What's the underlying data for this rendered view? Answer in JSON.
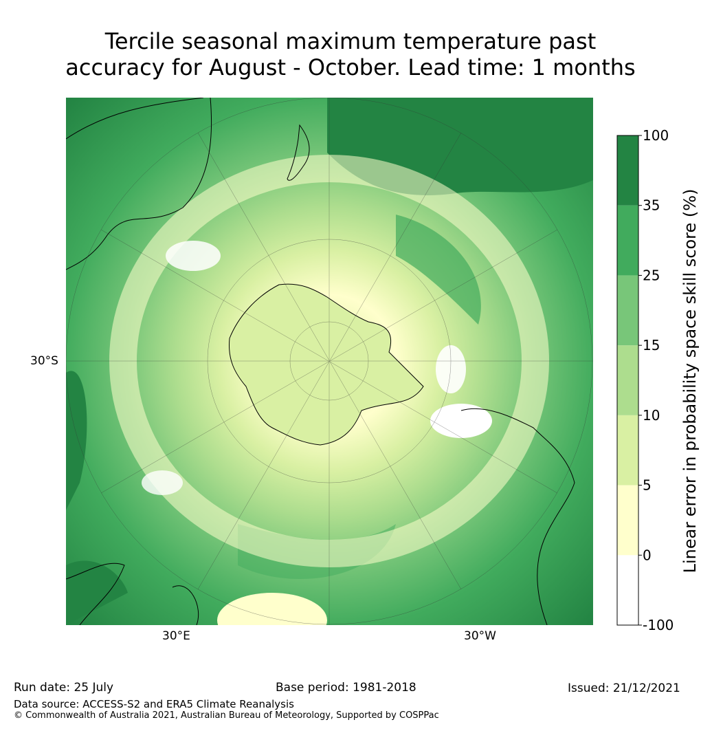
{
  "title": {
    "line1": "Tercile seasonal maximum temperature past",
    "line2": "accuracy for August - October. Lead time: 1 months"
  },
  "map": {
    "lat_label": "30°S",
    "lon_labels": [
      "30°E",
      "30°W"
    ],
    "palette": [
      "#ffffff",
      "#ffffcc",
      "#d9f0a3",
      "#addd8e",
      "#78c679",
      "#41ab5d",
      "#238443"
    ]
  },
  "colorbar": {
    "label": "Linear error in probability space skill score (%)",
    "ticks": [
      "-100",
      "0",
      "5",
      "10",
      "15",
      "25",
      "35",
      "100"
    ],
    "colors": [
      "#ffffff",
      "#ffffcc",
      "#d9f0a3",
      "#addd8e",
      "#78c679",
      "#41ab5d",
      "#238443"
    ]
  },
  "footer": {
    "run_date": "Run date: 25 July",
    "base_period": "Base period: 1981-2018",
    "issued": "Issued: 21/12/2021",
    "data_source": "Data source: ACCESS-S2 and ERA5 Climate Reanalysis",
    "copyright": "© Commonwealth of Australia 2021, Australian Bureau of Meteorology, Supported by COSPPac"
  }
}
